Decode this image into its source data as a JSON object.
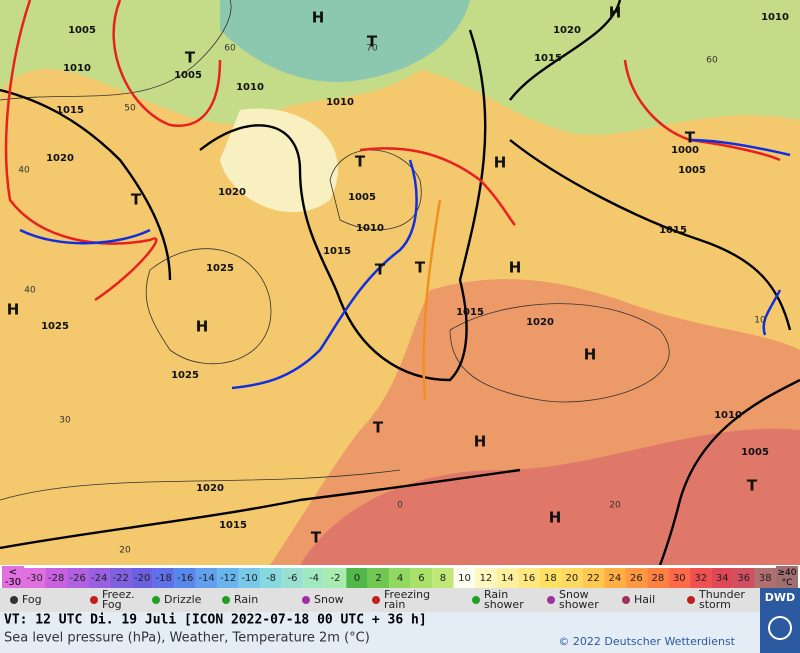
{
  "map": {
    "pressure_centers": [
      "H",
      "T",
      "H",
      "T",
      "T",
      "H",
      "T",
      "H",
      "H",
      "T",
      "T",
      "H",
      "H",
      "T",
      "T",
      "H",
      "T",
      "H",
      "T"
    ],
    "isobar_labels": [
      "1005",
      "1010",
      "1015",
      "1020",
      "1025",
      "1025",
      "1025",
      "1020",
      "1005",
      "1010",
      "1010",
      "1005",
      "1010",
      "1015",
      "1015",
      "1020",
      "1015",
      "1020",
      "1010",
      "1000",
      "1005",
      "1015",
      "1010",
      "1005",
      "1020",
      "1015"
    ],
    "isotherm_labels": [
      "40",
      "40",
      "30",
      "20",
      "50",
      "60",
      "70",
      "60",
      "0",
      "20",
      "10"
    ]
  },
  "colorbar": {
    "low_label": "<\n-30",
    "ticks": [
      -30,
      -28,
      -26,
      -24,
      -22,
      -20,
      -18,
      -16,
      -14,
      -12,
      -10,
      -8,
      -6,
      -4,
      -2,
      0,
      2,
      4,
      6,
      8,
      10,
      12,
      14,
      16,
      18,
      20,
      22,
      24,
      26,
      28,
      30,
      32,
      34,
      36,
      38
    ],
    "colors": [
      "#e070e0",
      "#c860e0",
      "#b060e0",
      "#9860e0",
      "#8060e0",
      "#6a60e0",
      "#5f70e8",
      "#5888ec",
      "#60a0ec",
      "#68b4ec",
      "#78c8e8",
      "#88d8e0",
      "#98e0d0",
      "#a0e8c0",
      "#a8ecb0",
      "#50b848",
      "#70c850",
      "#90d860",
      "#a8e068",
      "#c0e878",
      "#fffff0",
      "#fff8c0",
      "#fff0a0",
      "#ffe880",
      "#ffe060",
      "#ffd860",
      "#ffc850",
      "#ffb040",
      "#ff9840",
      "#ff8040",
      "#ff6848",
      "#f05050",
      "#e04858",
      "#d05060",
      "#b07070"
    ],
    "high_label": "≥40\n°C"
  },
  "legend": [
    "Fog",
    "Freez.\nFog",
    "Drizzle",
    "Rain",
    "Snow",
    "Freezing\nrain",
    "Rain\nshower",
    "Snow\nshower",
    "Hail",
    "Thunder\nstorm"
  ],
  "footer": {
    "valid_time": "VT: 12 UTC Di.  19 Juli [ICON 2022-07-18  00 UTC + 36 h]",
    "description": "Sea level pressure (hPa), Weather, Temperature 2m (°C)",
    "copyright": "© 2022 Deutscher Wetterdienst",
    "logo": "DWD"
  }
}
